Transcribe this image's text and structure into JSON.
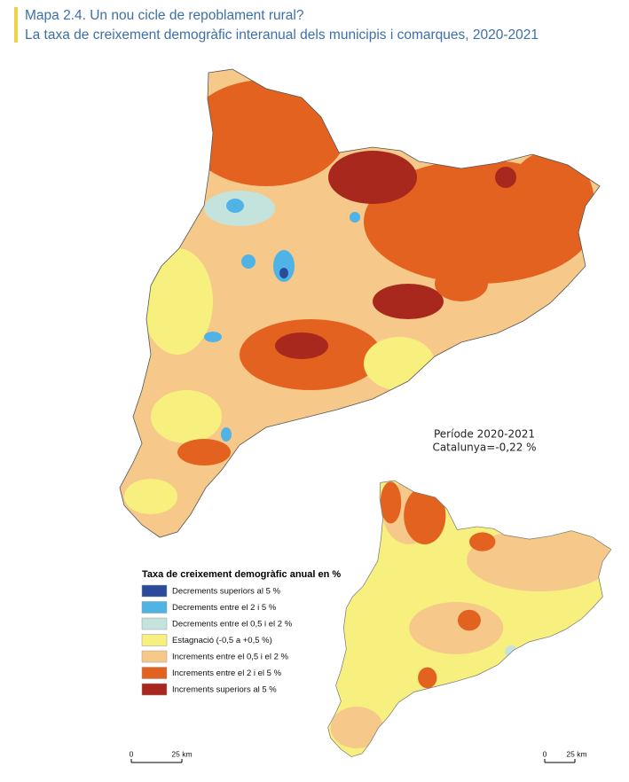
{
  "header": {
    "title": "Mapa 2.4. Un nou cicle de repoblament rural?",
    "subtitle": "La taxa de creixement demogràfic interanual dels municipis i comarques, 2020-2021"
  },
  "annotation": {
    "period": "Període 2020-2021",
    "catalonia": "Catalunya=-0,22 %"
  },
  "legend": {
    "title": "Taxa de creixement demogràfic anual en %",
    "items": [
      {
        "label": "Decrements superiors al 5 %",
        "color": "#2b4a9b"
      },
      {
        "label": "Decrements entre el 2 i 5 %",
        "color": "#4fb3e6"
      },
      {
        "label": "Decrements entre el 0,5 i el 2 %",
        "color": "#c4e3dd"
      },
      {
        "label": "Estagnació (-0,5 a +0,5 %)",
        "color": "#f8f07e"
      },
      {
        "label": "Increments entre el 0,5 i el 2 %",
        "color": "#f6c98b"
      },
      {
        "label": "Increments entre el 2 i el 5 %",
        "color": "#e4621f"
      },
      {
        "label": "Increments superiors al 5 %",
        "color": "#a8281e"
      }
    ]
  },
  "scale_bars": [
    {
      "start": "0",
      "end": "25 km"
    },
    {
      "start": "0",
      "end": "25 km"
    }
  ]
}
